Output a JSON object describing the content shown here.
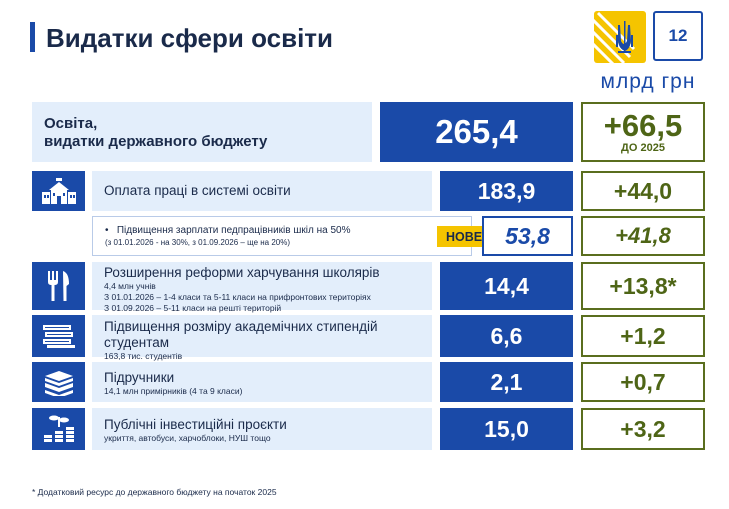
{
  "header": {
    "title": "Видатки сфери освіти",
    "page_number": "12",
    "unit": "млрд грн"
  },
  "summary": {
    "label_line1": "Освіта,",
    "label_line2": "видатки державного бюджету",
    "value": "265,4",
    "delta": "+66,5",
    "delta_note": "ДО 2025"
  },
  "rows": [
    {
      "icon": "school-icon",
      "title": "Оплата праці в системі освіти",
      "value": "183,9",
      "delta": "+44,0"
    },
    {
      "bullet": "•",
      "title": "Підвищення зарплати педпрацівників шкіл на 50%",
      "note": "(з 01.01.2026 - на 30%, з 01.09.2026 – ще на 20%)",
      "badge": "НОВЕ",
      "value": "53,8",
      "delta": "+41,8"
    },
    {
      "icon": "fork-knife-icon",
      "title": "Розширення  реформи харчування школярів",
      "details": [
        "4,4 млн учнів",
        "З 01.01.2026 – 1-4 класи та 5-11 класи на прифронтових територіях",
        "З 01.09.2026 – 5-11 класи на решті територій"
      ],
      "value": "14,4",
      "delta": "+13,8*"
    },
    {
      "icon": "money-stack-icon",
      "title_line1": "Підвищення розміру академічних стипендій",
      "title_line2": "студентам",
      "detail": "163,8 тис. студентів",
      "value": "6,6",
      "delta": "+1,2"
    },
    {
      "icon": "books-icon",
      "title": "Підручники",
      "detail": "14,1 млн примірників (4 та 9 класи)",
      "value": "2,1",
      "delta": "+0,7"
    },
    {
      "icon": "investment-sprout-icon",
      "title": "Публічні інвестиційні проєкти",
      "detail": "укриття, автобуси, харчоблоки, НУШ тощо",
      "value": "15,0",
      "delta": "+3,2"
    }
  ],
  "footnote": "* Додатковий ресурс до державного бюджету на початок 2025",
  "colors": {
    "brand_blue": "#1a4aa8",
    "light_blue": "#e3eefb",
    "olive": "#5a6e1e",
    "yellow": "#f5c400"
  }
}
